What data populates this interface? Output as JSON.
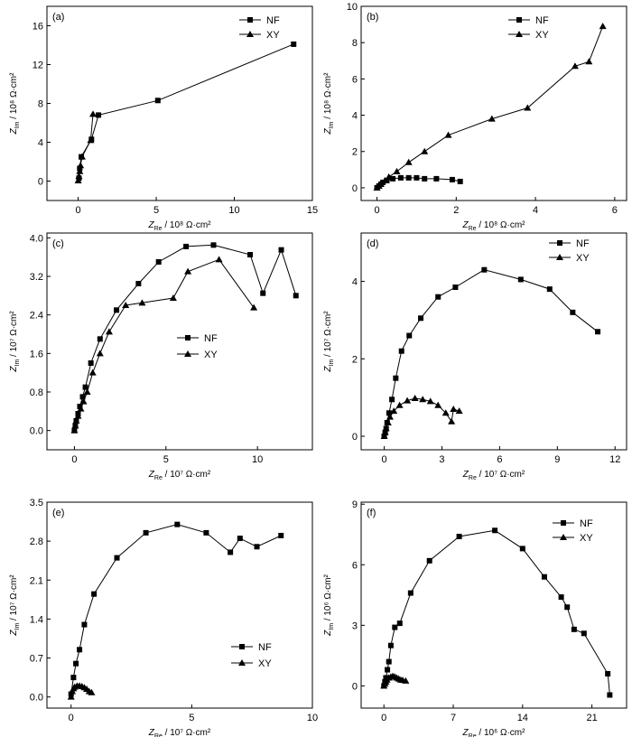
{
  "figure": {
    "panels_order": [
      "a",
      "b",
      "c",
      "d",
      "e",
      "f"
    ]
  },
  "chart_data": [
    {
      "id": "a",
      "panel_label": "(a)",
      "type": "line",
      "x_label": {
        "symbol": "Z",
        "sub": "Re",
        "rest": " / 10⁸ Ω·cm²"
      },
      "y_label": {
        "symbol": "Z",
        "sub": "Im",
        "rest": " / 10⁸ Ω·cm²"
      },
      "xlim": [
        -2,
        15
      ],
      "ylim": [
        -2,
        18
      ],
      "xticks": [
        0,
        5,
        10,
        15
      ],
      "yticks": [
        0,
        4,
        8,
        12,
        16
      ],
      "legend_position": "top-right",
      "series": [
        {
          "name": "NF",
          "marker": "square",
          "x": [
            0.05,
            0.1,
            0.2,
            0.85,
            1.3,
            5.1,
            13.8
          ],
          "y": [
            0.3,
            1.3,
            2.5,
            4.3,
            6.8,
            8.3,
            14.1
          ]
        },
        {
          "name": "XY",
          "marker": "triangle",
          "x": [
            0.0,
            0.05,
            0.1,
            0.15,
            0.25,
            0.8,
            0.95
          ],
          "y": [
            0.05,
            0.5,
            1.0,
            1.6,
            2.5,
            4.2,
            6.9
          ]
        }
      ]
    },
    {
      "id": "b",
      "panel_label": "(b)",
      "type": "line",
      "x_label": {
        "symbol": "Z",
        "sub": "Re",
        "rest": " / 10⁸ Ω·cm²"
      },
      "y_label": {
        "symbol": "Z",
        "sub": "Im",
        "rest": " / 10⁸ Ω·cm²"
      },
      "xlim": [
        -0.4,
        6.3
      ],
      "ylim": [
        -0.7,
        10
      ],
      "xticks": [
        0,
        2,
        4,
        6
      ],
      "yticks": [
        0,
        2,
        4,
        6,
        8,
        10
      ],
      "legend_position": "top-left",
      "series": [
        {
          "name": "NF",
          "marker": "square",
          "x": [
            0.0,
            0.05,
            0.1,
            0.15,
            0.25,
            0.4,
            0.6,
            0.8,
            1.0,
            1.2,
            1.5,
            1.9,
            2.1
          ],
          "y": [
            0.0,
            0.1,
            0.2,
            0.3,
            0.4,
            0.5,
            0.55,
            0.55,
            0.55,
            0.5,
            0.5,
            0.45,
            0.35
          ]
        },
        {
          "name": "XY",
          "marker": "triangle",
          "x": [
            0.0,
            0.05,
            0.1,
            0.2,
            0.3,
            0.5,
            0.8,
            1.2,
            1.8,
            2.9,
            3.8,
            5.0,
            5.35,
            5.7
          ],
          "y": [
            0.0,
            0.1,
            0.2,
            0.4,
            0.6,
            0.9,
            1.4,
            2.0,
            2.9,
            3.8,
            4.4,
            6.7,
            6.95,
            8.9
          ]
        }
      ]
    },
    {
      "id": "c",
      "panel_label": "(c)",
      "type": "line",
      "x_label": {
        "symbol": "Z",
        "sub": "Re",
        "rest": " / 10⁷ Ω·cm²"
      },
      "y_label": {
        "symbol": "Z",
        "sub": "Im",
        "rest": " / 10⁷ Ω·cm²"
      },
      "xlim": [
        -1.5,
        13
      ],
      "ylim": [
        -0.4,
        4.1
      ],
      "xticks": [
        0,
        5,
        10
      ],
      "yticks": [
        0.0,
        0.8,
        1.6,
        2.4,
        3.2,
        4.0
      ],
      "tick_decimals": [
        0,
        1
      ],
      "legend_position": "center",
      "series": [
        {
          "name": "NF",
          "marker": "square",
          "x": [
            0.0,
            0.05,
            0.1,
            0.2,
            0.3,
            0.45,
            0.6,
            0.9,
            1.4,
            2.3,
            3.5,
            4.6,
            6.1,
            7.6,
            9.6,
            10.3,
            11.3,
            12.1
          ],
          "y": [
            0.0,
            0.1,
            0.2,
            0.35,
            0.5,
            0.7,
            0.9,
            1.4,
            1.9,
            2.5,
            3.05,
            3.5,
            3.82,
            3.85,
            3.65,
            2.85,
            3.75,
            2.8
          ]
        },
        {
          "name": "XY",
          "marker": "triangle",
          "x": [
            0.0,
            0.05,
            0.1,
            0.2,
            0.35,
            0.5,
            0.7,
            1.0,
            1.4,
            1.9,
            2.8,
            3.7,
            5.4,
            6.2,
            7.9,
            9.8
          ],
          "y": [
            0.0,
            0.1,
            0.2,
            0.3,
            0.45,
            0.6,
            0.8,
            1.2,
            1.6,
            2.05,
            2.6,
            2.65,
            2.75,
            3.3,
            3.55,
            2.55
          ]
        }
      ]
    },
    {
      "id": "d",
      "panel_label": "(d)",
      "type": "line",
      "x_label": {
        "symbol": "Z",
        "sub": "Re",
        "rest": " / 10⁷ Ω·cm²"
      },
      "y_label": {
        "symbol": "Z",
        "sub": "Im",
        "rest": " / 10⁷ Ω·cm²"
      },
      "xlim": [
        -1.2,
        12.6
      ],
      "ylim": [
        -0.35,
        5.25
      ],
      "xticks": [
        0,
        3,
        6,
        9,
        12
      ],
      "yticks": [
        0,
        2,
        4
      ],
      "legend_position": "top-right",
      "series": [
        {
          "name": "NF",
          "marker": "square",
          "x": [
            0.0,
            0.05,
            0.1,
            0.15,
            0.25,
            0.4,
            0.6,
            0.9,
            1.3,
            1.9,
            2.8,
            3.7,
            5.2,
            7.1,
            8.6,
            9.8,
            11.1
          ],
          "y": [
            0.0,
            0.1,
            0.2,
            0.35,
            0.6,
            0.95,
            1.5,
            2.2,
            2.6,
            3.05,
            3.6,
            3.85,
            4.3,
            4.05,
            3.8,
            3.2,
            2.7
          ]
        },
        {
          "name": "XY",
          "marker": "triangle",
          "x": [
            0.0,
            0.05,
            0.1,
            0.2,
            0.3,
            0.5,
            0.8,
            1.2,
            1.6,
            2.0,
            2.4,
            2.8,
            3.2,
            3.5,
            3.6,
            3.9
          ],
          "y": [
            0.0,
            0.1,
            0.2,
            0.35,
            0.5,
            0.65,
            0.8,
            0.92,
            0.98,
            0.95,
            0.9,
            0.8,
            0.6,
            0.38,
            0.7,
            0.65
          ]
        }
      ]
    },
    {
      "id": "e",
      "panel_label": "(e)",
      "type": "line",
      "x_label": {
        "symbol": "Z",
        "sub": "Re",
        "rest": " / 10⁷ Ω·cm²"
      },
      "y_label": {
        "symbol": "Z",
        "sub": "Im",
        "rest": " / 10⁷ Ω·cm²"
      },
      "xlim": [
        -1,
        10
      ],
      "ylim": [
        -0.2,
        3.5
      ],
      "xticks": [
        0,
        5,
        10
      ],
      "yticks": [
        0.0,
        0.7,
        1.4,
        2.1,
        2.8,
        3.5
      ],
      "tick_decimals": [
        0,
        1
      ],
      "legend_position": "center-right",
      "series": [
        {
          "name": "NF",
          "marker": "square",
          "x": [
            0.0,
            0.1,
            0.2,
            0.35,
            0.55,
            0.95,
            1.9,
            3.1,
            4.4,
            5.6,
            6.6,
            7.0,
            7.7,
            8.7
          ],
          "y": [
            0.05,
            0.35,
            0.6,
            0.85,
            1.3,
            1.85,
            2.5,
            2.95,
            3.1,
            2.95,
            2.6,
            2.85,
            2.7,
            2.9
          ]
        },
        {
          "name": "XY",
          "marker": "triangle",
          "x": [
            0.0,
            0.05,
            0.1,
            0.15,
            0.25,
            0.35,
            0.45,
            0.55,
            0.65,
            0.75,
            0.85
          ],
          "y": [
            0.0,
            0.1,
            0.15,
            0.18,
            0.2,
            0.2,
            0.19,
            0.17,
            0.14,
            0.1,
            0.08
          ]
        }
      ]
    },
    {
      "id": "f",
      "panel_label": "(f)",
      "type": "line",
      "x_label": {
        "symbol": "Z",
        "sub": "Re",
        "rest": " / 10⁶ Ω·cm²"
      },
      "y_label": {
        "symbol": "Z",
        "sub": "Im",
        "rest": " / 10⁶ Ω·cm²"
      },
      "xlim": [
        -2.3,
        24.5
      ],
      "ylim": [
        -1.1,
        9.1
      ],
      "xticks": [
        0,
        7,
        14,
        21
      ],
      "yticks": [
        0,
        3,
        6,
        9
      ],
      "legend_position": "top-right",
      "series": [
        {
          "name": "NF",
          "marker": "square",
          "x": [
            0.0,
            0.1,
            0.2,
            0.35,
            0.5,
            0.7,
            1.1,
            1.6,
            2.7,
            4.6,
            7.6,
            11.2,
            14.0,
            16.2,
            17.9,
            18.5,
            19.2,
            20.2,
            22.6,
            22.8
          ],
          "y": [
            0.0,
            0.2,
            0.4,
            0.8,
            1.2,
            2.0,
            2.9,
            3.1,
            4.6,
            6.2,
            7.4,
            7.7,
            6.8,
            5.4,
            4.4,
            3.9,
            2.8,
            2.6,
            0.6,
            -0.45
          ]
        },
        {
          "name": "XY",
          "marker": "triangle",
          "x": [
            0.0,
            0.1,
            0.2,
            0.3,
            0.5,
            0.7,
            0.9,
            1.1,
            1.3,
            1.5,
            1.7,
            1.9,
            2.2
          ],
          "y": [
            0.0,
            0.1,
            0.2,
            0.3,
            0.4,
            0.45,
            0.48,
            0.45,
            0.4,
            0.35,
            0.3,
            0.28,
            0.25
          ]
        }
      ]
    }
  ]
}
